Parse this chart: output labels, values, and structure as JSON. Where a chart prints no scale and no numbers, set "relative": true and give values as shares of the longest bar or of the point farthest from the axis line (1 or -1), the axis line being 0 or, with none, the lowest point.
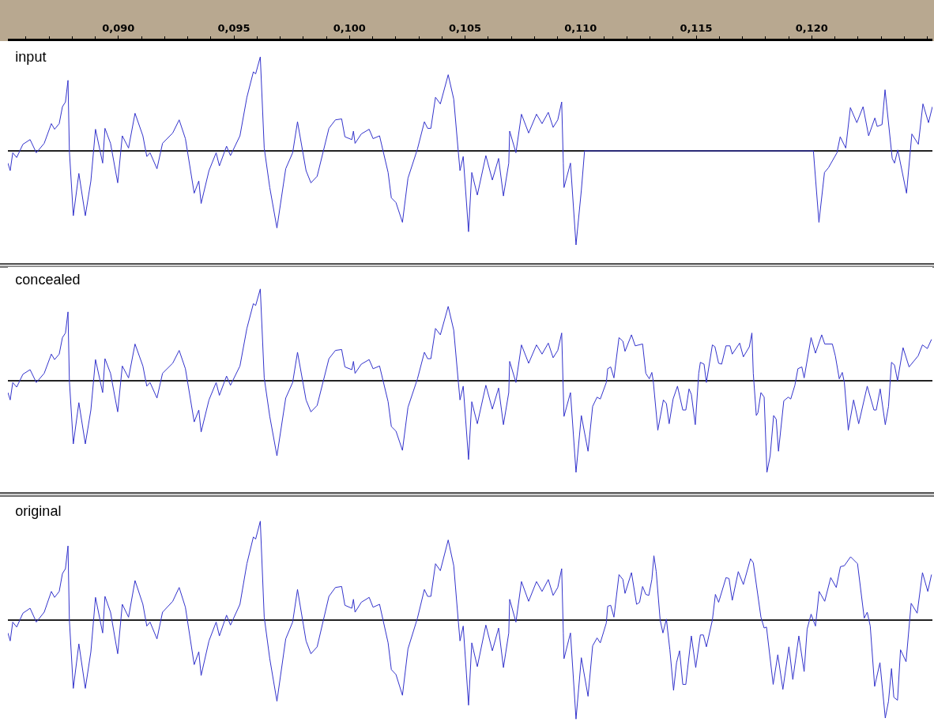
{
  "chart_data": [
    {
      "type": "line",
      "title": "input",
      "relative": true,
      "xlim": [
        0.08522,
        0.12522
      ],
      "tick_labels": "x",
      "xticks": [
        {
          "value": 0.09,
          "label": "0,090"
        },
        {
          "value": 0.095,
          "label": "0,095"
        },
        {
          "value": 0.1,
          "label": "0,100"
        },
        {
          "value": 0.105,
          "label": "0,105"
        },
        {
          "value": 0.11,
          "label": "0,110"
        },
        {
          "value": 0.115,
          "label": "0,115"
        },
        {
          "value": 0.12,
          "label": "0,120"
        }
      ],
      "x": [
        0.08522,
        0.08532,
        0.08543,
        0.0856,
        0.08587,
        0.08618,
        0.08645,
        0.08679,
        0.0871,
        0.08724,
        0.08744,
        0.08758,
        0.08771,
        0.08782,
        0.08788,
        0.08805,
        0.08829,
        0.08857,
        0.08881,
        0.08901,
        0.08932,
        0.08942,
        0.08966,
        0.08997,
        0.09017,
        0.09044,
        0.09072,
        0.09106,
        0.09123,
        0.09137,
        0.09167,
        0.09191,
        0.09235,
        0.09263,
        0.0929,
        0.09328,
        0.09348,
        0.09358,
        0.09392,
        0.09423,
        0.09437,
        0.09468,
        0.09485,
        0.09526,
        0.09556,
        0.09584,
        0.09594,
        0.09614,
        0.09631,
        0.09655,
        0.09686,
        0.09724,
        0.09754,
        0.09775,
        0.09812,
        0.09833,
        0.0986,
        0.09911,
        0.09939,
        0.09966,
        0.0998,
        0.1001,
        0.10017,
        0.10024,
        0.10051,
        0.10085,
        0.10102,
        0.1013,
        0.10167,
        0.10181,
        0.10201,
        0.10229,
        0.10253,
        0.10294,
        0.10324,
        0.10338,
        0.10352,
        0.10372,
        0.10393,
        0.10427,
        0.10451,
        0.10471,
        0.10478,
        0.10492,
        0.10515,
        0.10529,
        0.10553,
        0.1059,
        0.10618,
        0.10645,
        0.10666,
        0.10689,
        0.10693,
        0.1072,
        0.10744,
        0.10775,
        0.10809,
        0.10833,
        0.1086,
        0.10881,
        0.10901,
        0.10918,
        0.10925,
        0.10928,
        0.10956,
        0.1098,
        0.11003,
        0.11017,
        0.12007,
        0.12031,
        0.12055,
        0.12072,
        0.12109,
        0.12123,
        0.12147,
        0.12167,
        0.12195,
        0.12222,
        0.12246,
        0.12273,
        0.12283,
        0.12304,
        0.12317,
        0.12348,
        0.12358,
        0.12372,
        0.1241,
        0.12433,
        0.12461,
        0.12481,
        0.12505,
        0.12522
      ],
      "series": [
        {
          "color": "#3333cc",
          "values": [
            -0.13,
            -0.21,
            -0.02,
            -0.07,
            0.07,
            0.12,
            -0.02,
            0.08,
            0.29,
            0.23,
            0.29,
            0.47,
            0.52,
            0.75,
            0,
            -0.69,
            -0.24,
            -0.69,
            -0.32,
            0.23,
            -0.13,
            0.24,
            0.08,
            -0.34,
            0.16,
            0.03,
            0.4,
            0.16,
            -0.06,
            -0.02,
            -0.19,
            0.08,
            0.19,
            0.33,
            0.13,
            -0.45,
            -0.32,
            -0.56,
            -0.21,
            -0.02,
            -0.16,
            0.05,
            -0.05,
            0.16,
            0.57,
            0.84,
            0.82,
            1,
            0.03,
            -0.39,
            -0.82,
            -0.19,
            -0.02,
            0.31,
            -0.21,
            -0.34,
            -0.27,
            0.24,
            0.33,
            0.34,
            0.15,
            0.12,
            0.21,
            0.08,
            0.18,
            0.23,
            0.13,
            0.16,
            -0.23,
            -0.5,
            -0.55,
            -0.76,
            -0.29,
            0.02,
            0.31,
            0.24,
            0.24,
            0.57,
            0.5,
            0.81,
            0.55,
            -0.02,
            -0.21,
            -0.06,
            -0.86,
            -0.23,
            -0.47,
            -0.05,
            -0.31,
            -0.08,
            -0.48,
            -0.13,
            0.21,
            -0.02,
            0.39,
            0.19,
            0.39,
            0.29,
            0.41,
            0.25,
            0.33,
            0.52,
            -0.13,
            -0.39,
            -0.13,
            -1,
            -0.42,
            0,
            0,
            -0.76,
            -0.23,
            -0.18,
            -0.02,
            0.15,
            0.03,
            0.46,
            0.3,
            0.47,
            0.16,
            0.35,
            0.26,
            0.28,
            0.65,
            -0.08,
            -0.13,
            0.01,
            -0.45,
            0.18,
            0.07,
            0.5,
            0.3,
            0.47
          ]
        }
      ]
    },
    {
      "type": "line",
      "title": "concealed",
      "relative": true,
      "xlim": [
        0.08522,
        0.12522
      ],
      "tick_labels": false,
      "x": [
        0.08522,
        0.08532,
        0.08543,
        0.0856,
        0.08587,
        0.08618,
        0.08645,
        0.08679,
        0.0871,
        0.08724,
        0.08744,
        0.08758,
        0.08771,
        0.08782,
        0.08788,
        0.08805,
        0.08829,
        0.08857,
        0.08881,
        0.08901,
        0.08932,
        0.08942,
        0.08966,
        0.08997,
        0.09017,
        0.09044,
        0.09072,
        0.09106,
        0.09123,
        0.09137,
        0.09167,
        0.09191,
        0.09235,
        0.09263,
        0.0929,
        0.09328,
        0.09348,
        0.09358,
        0.09392,
        0.09423,
        0.09437,
        0.09468,
        0.09485,
        0.09526,
        0.09556,
        0.09584,
        0.09594,
        0.09614,
        0.09631,
        0.09655,
        0.09686,
        0.09724,
        0.09754,
        0.09775,
        0.09812,
        0.09833,
        0.0986,
        0.09911,
        0.09939,
        0.09966,
        0.0998,
        0.1001,
        0.10017,
        0.10024,
        0.10051,
        0.10085,
        0.10102,
        0.1013,
        0.10167,
        0.10181,
        0.10201,
        0.10229,
        0.10253,
        0.10294,
        0.10324,
        0.10338,
        0.10352,
        0.10372,
        0.10393,
        0.10427,
        0.10451,
        0.10471,
        0.10478,
        0.10492,
        0.10515,
        0.10529,
        0.10553,
        0.1059,
        0.10618,
        0.10645,
        0.10666,
        0.10689,
        0.10693,
        0.1072,
        0.10744,
        0.10775,
        0.10809,
        0.10833,
        0.1086,
        0.10881,
        0.10901,
        0.10918,
        0.10925,
        0.10928,
        0.10956,
        0.1098,
        0.11003,
        0.11032,
        0.11052,
        0.11071,
        0.11085,
        0.11111,
        0.11117,
        0.1113,
        0.11144,
        0.11166,
        0.11183,
        0.11192,
        0.1122,
        0.11236,
        0.11268,
        0.11282,
        0.11297,
        0.11308,
        0.11314,
        0.11334,
        0.11358,
        0.11371,
        0.11383,
        0.114,
        0.11419,
        0.11442,
        0.11455,
        0.11469,
        0.11479,
        0.11496,
        0.11511,
        0.11518,
        0.11534,
        0.11544,
        0.1157,
        0.11581,
        0.11597,
        0.1161,
        0.11629,
        0.11646,
        0.11656,
        0.11688,
        0.11704,
        0.1173,
        0.11741,
        0.11747,
        0.1176,
        0.11767,
        0.1178,
        0.11794,
        0.11806,
        0.1182,
        0.11835,
        0.11846,
        0.11856,
        0.11879,
        0.11898,
        0.11909,
        0.11927,
        0.1194,
        0.11957,
        0.11967,
        0.11997,
        0.12016,
        0.12043,
        0.12056,
        0.12089,
        0.12102,
        0.12119,
        0.12132,
        0.12141,
        0.12158,
        0.12181,
        0.12203,
        0.1224,
        0.12269,
        0.12279,
        0.12296,
        0.12318,
        0.12332,
        0.12345,
        0.12358,
        0.12371,
        0.12395,
        0.12421,
        0.1246,
        0.12479,
        0.125,
        0.12518
      ],
      "series": [
        {
          "color": "#3333cc",
          "values": [
            -0.13,
            -0.21,
            -0.02,
            -0.07,
            0.07,
            0.12,
            -0.02,
            0.08,
            0.29,
            0.23,
            0.29,
            0.47,
            0.52,
            0.75,
            0,
            -0.69,
            -0.24,
            -0.69,
            -0.32,
            0.23,
            -0.13,
            0.24,
            0.08,
            -0.34,
            0.16,
            0.03,
            0.4,
            0.16,
            -0.06,
            -0.02,
            -0.19,
            0.08,
            0.19,
            0.33,
            0.13,
            -0.45,
            -0.32,
            -0.56,
            -0.21,
            -0.02,
            -0.16,
            0.05,
            -0.05,
            0.16,
            0.57,
            0.84,
            0.82,
            1,
            0.03,
            -0.39,
            -0.82,
            -0.19,
            -0.02,
            0.31,
            -0.21,
            -0.34,
            -0.27,
            0.24,
            0.33,
            0.34,
            0.15,
            0.12,
            0.21,
            0.08,
            0.18,
            0.23,
            0.13,
            0.16,
            -0.23,
            -0.5,
            -0.55,
            -0.76,
            -0.29,
            0.02,
            0.31,
            0.24,
            0.24,
            0.57,
            0.5,
            0.81,
            0.55,
            -0.02,
            -0.21,
            -0.06,
            -0.86,
            -0.23,
            -0.47,
            -0.05,
            -0.31,
            -0.08,
            -0.48,
            -0.13,
            0.21,
            -0.02,
            0.39,
            0.19,
            0.39,
            0.29,
            0.41,
            0.25,
            0.33,
            0.52,
            -0.13,
            -0.39,
            -0.13,
            -1,
            -0.38,
            -0.77,
            -0.28,
            -0.18,
            -0.2,
            -0.02,
            0.13,
            0.15,
            0.03,
            0.47,
            0.43,
            0.32,
            0.5,
            0.38,
            0.4,
            0.08,
            0.02,
            0.09,
            0,
            -0.54,
            -0.21,
            -0.25,
            -0.47,
            -0.2,
            -0.06,
            -0.32,
            -0.32,
            -0.09,
            -0.15,
            -0.48,
            0.08,
            0.2,
            0.18,
            -0.02,
            0.39,
            0.37,
            0.19,
            0.18,
            0.38,
            0.38,
            0.29,
            0.41,
            0.26,
            0.37,
            0.52,
            0.08,
            -0.38,
            -0.35,
            -0.13,
            -0.18,
            -1,
            -0.82,
            -0.38,
            -0.42,
            -0.77,
            -0.22,
            -0.18,
            -0.2,
            -0.05,
            0.13,
            0.15,
            0.03,
            0.47,
            0.3,
            0.5,
            0.4,
            0.4,
            0.27,
            0.02,
            0.09,
            -0.02,
            -0.54,
            -0.21,
            -0.47,
            -0.06,
            -0.32,
            -0.32,
            -0.09,
            -0.48,
            -0.28,
            0.2,
            0.17,
            0,
            0.36,
            0.15,
            0.27,
            0.39,
            0.35,
            0.45
          ]
        }
      ]
    },
    {
      "type": "line",
      "title": "original",
      "relative": true,
      "xlim": [
        0.08522,
        0.12522
      ],
      "tick_labels": false,
      "x": [
        0.08522,
        0.08532,
        0.08543,
        0.0856,
        0.08587,
        0.08618,
        0.08645,
        0.08679,
        0.0871,
        0.08724,
        0.08744,
        0.08758,
        0.08771,
        0.08782,
        0.08788,
        0.08805,
        0.08829,
        0.08857,
        0.08881,
        0.08901,
        0.08932,
        0.08942,
        0.08966,
        0.08997,
        0.09017,
        0.09044,
        0.09072,
        0.09106,
        0.09123,
        0.09137,
        0.09167,
        0.09191,
        0.09235,
        0.09263,
        0.0929,
        0.09328,
        0.09348,
        0.09358,
        0.09392,
        0.09423,
        0.09437,
        0.09468,
        0.09485,
        0.09526,
        0.09556,
        0.09584,
        0.09594,
        0.09614,
        0.09631,
        0.09655,
        0.09686,
        0.09724,
        0.09754,
        0.09775,
        0.09812,
        0.09833,
        0.0986,
        0.09911,
        0.09939,
        0.09966,
        0.0998,
        0.1001,
        0.10017,
        0.10024,
        0.10051,
        0.10085,
        0.10102,
        0.1013,
        0.10167,
        0.10181,
        0.10201,
        0.10229,
        0.10253,
        0.10294,
        0.10324,
        0.10338,
        0.10352,
        0.10372,
        0.10393,
        0.10427,
        0.10451,
        0.10471,
        0.10478,
        0.10492,
        0.10515,
        0.10529,
        0.10553,
        0.1059,
        0.10618,
        0.10645,
        0.10666,
        0.10689,
        0.10693,
        0.1072,
        0.10744,
        0.10775,
        0.10809,
        0.10833,
        0.1086,
        0.10881,
        0.10901,
        0.10918,
        0.10925,
        0.10928,
        0.10956,
        0.1098,
        0.11003,
        0.11032,
        0.11052,
        0.11071,
        0.11085,
        0.11111,
        0.11117,
        0.1113,
        0.11144,
        0.11166,
        0.11183,
        0.11192,
        0.1122,
        0.11242,
        0.11255,
        0.11268,
        0.11282,
        0.11295,
        0.11308,
        0.11317,
        0.11327,
        0.11344,
        0.11356,
        0.11371,
        0.11386,
        0.11402,
        0.11415,
        0.11428,
        0.11442,
        0.11455,
        0.11479,
        0.11498,
        0.11518,
        0.11531,
        0.11544,
        0.1157,
        0.11583,
        0.11597,
        0.11629,
        0.11642,
        0.11656,
        0.11682,
        0.11704,
        0.11735,
        0.11747,
        0.1178,
        0.11794,
        0.11804,
        0.11833,
        0.11853,
        0.11875,
        0.11901,
        0.11918,
        0.11944,
        0.11967,
        0.1198,
        0.11997,
        0.12016,
        0.12032,
        0.12056,
        0.12082,
        0.12106,
        0.12124,
        0.12141,
        0.12168,
        0.12198,
        0.12227,
        0.1224,
        0.12253,
        0.12272,
        0.12295,
        0.12318,
        0.12332,
        0.12345,
        0.12355,
        0.12371,
        0.12384,
        0.12408,
        0.1243,
        0.12456,
        0.12479,
        0.12502,
        0.12518
      ],
      "series": [
        {
          "color": "#3333cc",
          "values": [
            -0.13,
            -0.21,
            -0.02,
            -0.07,
            0.07,
            0.12,
            -0.02,
            0.08,
            0.29,
            0.23,
            0.29,
            0.47,
            0.52,
            0.75,
            0,
            -0.69,
            -0.24,
            -0.69,
            -0.32,
            0.23,
            -0.13,
            0.24,
            0.08,
            -0.34,
            0.16,
            0.03,
            0.4,
            0.16,
            -0.06,
            -0.02,
            -0.19,
            0.08,
            0.19,
            0.33,
            0.13,
            -0.45,
            -0.32,
            -0.56,
            -0.21,
            -0.02,
            -0.16,
            0.05,
            -0.05,
            0.16,
            0.57,
            0.84,
            0.82,
            1,
            0.03,
            -0.39,
            -0.82,
            -0.19,
            -0.02,
            0.31,
            -0.21,
            -0.34,
            -0.27,
            0.24,
            0.33,
            0.34,
            0.15,
            0.12,
            0.21,
            0.08,
            0.18,
            0.23,
            0.13,
            0.16,
            -0.23,
            -0.5,
            -0.55,
            -0.76,
            -0.29,
            0.02,
            0.31,
            0.24,
            0.24,
            0.57,
            0.5,
            0.81,
            0.55,
            -0.02,
            -0.21,
            -0.06,
            -0.86,
            -0.23,
            -0.47,
            -0.05,
            -0.31,
            -0.08,
            -0.48,
            -0.13,
            0.21,
            -0.02,
            0.39,
            0.19,
            0.39,
            0.29,
            0.41,
            0.25,
            0.33,
            0.52,
            -0.13,
            -0.39,
            -0.13,
            -1,
            -0.38,
            -0.77,
            -0.26,
            -0.18,
            -0.23,
            -0.03,
            0.14,
            0.15,
            0.03,
            0.46,
            0.41,
            0.27,
            0.48,
            0.16,
            0.18,
            0.34,
            0.26,
            0.25,
            0.41,
            0.65,
            0.49,
            0,
            -0.13,
            0.01,
            -0.3,
            -0.71,
            -0.43,
            -0.31,
            -0.65,
            -0.65,
            -0.16,
            -0.48,
            -0.15,
            -0.15,
            -0.27,
            0,
            0.26,
            0.18,
            0.43,
            0.42,
            0.2,
            0.49,
            0.36,
            0.62,
            0.58,
            0.03,
            -0.08,
            -0.07,
            -0.65,
            -0.35,
            -0.7,
            -0.27,
            -0.6,
            -0.16,
            -0.52,
            -0.09,
            0.06,
            -0.06,
            0.29,
            0.19,
            0.43,
            0.33,
            0.54,
            0.55,
            0.64,
            0.57,
            0.02,
            0.08,
            -0.06,
            -0.67,
            -0.43,
            -0.99,
            -0.82,
            -0.49,
            -0.78,
            -0.81,
            -0.3,
            -0.42,
            0.17,
            0.07,
            0.48,
            0.29,
            0.46
          ]
        }
      ]
    }
  ]
}
